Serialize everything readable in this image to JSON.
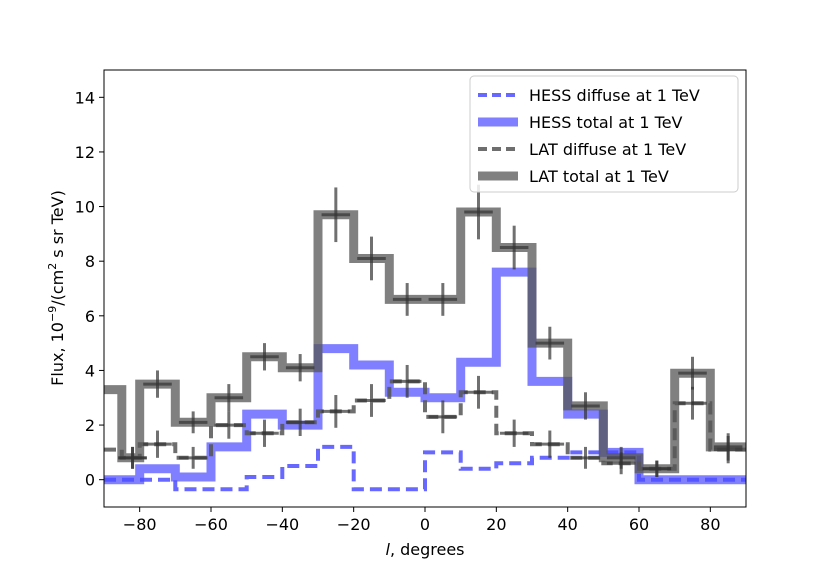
{
  "chart_data": {
    "type": "line",
    "title": "",
    "xlabel_italic": "l",
    "xlabel_rest": ", degrees",
    "ylabel": "Flux, 10",
    "ylabel_exp": "−9",
    "ylabel_mid": "/(cm",
    "ylabel_exp2": "2",
    "ylabel_end": " s sr TeV)",
    "xlim": [
      -90,
      90
    ],
    "ylim": [
      -1,
      15
    ],
    "xticks": [
      -80,
      -60,
      -40,
      -20,
      0,
      20,
      40,
      60,
      80
    ],
    "xtick_labels": [
      "−80",
      "−60",
      "−40",
      "−20",
      "0",
      "20",
      "40",
      "60",
      "80"
    ],
    "yticks": [
      0,
      2,
      4,
      6,
      8,
      10,
      12,
      14
    ],
    "ytick_labels": [
      "0",
      "2",
      "4",
      "6",
      "8",
      "10",
      "12",
      "14"
    ],
    "grid": false,
    "legend_position": "top-right",
    "bin_edges": [
      -90,
      -85,
      -80,
      -70,
      -60,
      -50,
      -40,
      -30,
      -20,
      -10,
      0,
      10,
      20,
      30,
      40,
      50,
      60,
      70,
      80,
      90
    ],
    "series": [
      {
        "name": "HESS diffuse at 1 TeV",
        "style": "dashed",
        "color": "#4d4dff",
        "values": [
          0,
          0,
          0,
          -0.35,
          -0.35,
          0.1,
          0.5,
          1.2,
          -0.35,
          -0.35,
          1.0,
          0.4,
          0.6,
          0.8,
          1.0,
          1.0,
          0.0,
          0.0,
          0.0
        ]
      },
      {
        "name": "HESS total at 1 TeV",
        "style": "solid",
        "color": "#4d4dff",
        "values": [
          0,
          0,
          0.4,
          0.1,
          1.2,
          2.4,
          2.0,
          4.8,
          4.2,
          3.2,
          3.0,
          4.3,
          7.6,
          3.6,
          2.4,
          1.0,
          0.0,
          0.0,
          0.0
        ]
      },
      {
        "name": "LAT diffuse at 1 TeV",
        "style": "dashed",
        "color": "#555555",
        "values": [
          1.1,
          0.8,
          1.3,
          0.8,
          2.0,
          1.7,
          2.1,
          2.5,
          2.9,
          3.6,
          2.3,
          3.2,
          1.7,
          1.3,
          0.8,
          0.6,
          0.4,
          2.8,
          1.1
        ]
      },
      {
        "name": "LAT total at 1 TeV",
        "style": "solid",
        "color": "#555555",
        "values": [
          3.3,
          0.8,
          3.5,
          2.1,
          3.0,
          4.5,
          4.1,
          9.7,
          8.1,
          6.6,
          6.6,
          9.8,
          8.5,
          5.0,
          2.7,
          0.8,
          0.4,
          3.9,
          1.2
        ]
      }
    ],
    "error_bars": [
      {
        "series": "LAT total at 1 TeV",
        "points": [
          {
            "x": -82,
            "y": 0.8,
            "err": 0.4
          },
          {
            "x": -75,
            "y": 3.5,
            "err": 0.5
          },
          {
            "x": -65,
            "y": 2.1,
            "err": 0.4
          },
          {
            "x": -55,
            "y": 3.0,
            "err": 0.5
          },
          {
            "x": -45,
            "y": 4.5,
            "err": 0.5
          },
          {
            "x": -35,
            "y": 4.1,
            "err": 0.5
          },
          {
            "x": -25,
            "y": 9.7,
            "err": 1.0
          },
          {
            "x": -15,
            "y": 8.1,
            "err": 0.8
          },
          {
            "x": -5,
            "y": 6.6,
            "err": 0.6
          },
          {
            "x": 5,
            "y": 6.6,
            "err": 0.6
          },
          {
            "x": 15,
            "y": 9.8,
            "err": 1.0
          },
          {
            "x": 25,
            "y": 8.5,
            "err": 0.8
          },
          {
            "x": 35,
            "y": 5.0,
            "err": 0.6
          },
          {
            "x": 45,
            "y": 2.7,
            "err": 0.5
          },
          {
            "x": 55,
            "y": 0.8,
            "err": 0.4
          },
          {
            "x": 65,
            "y": 0.4,
            "err": 0.3
          },
          {
            "x": 75,
            "y": 3.9,
            "err": 0.6
          },
          {
            "x": 85,
            "y": 1.2,
            "err": 0.5
          }
        ]
      },
      {
        "series": "LAT diffuse at 1 TeV",
        "points": [
          {
            "x": -82,
            "y": 0.8,
            "err": 0.4
          },
          {
            "x": -75,
            "y": 1.3,
            "err": 0.5
          },
          {
            "x": -65,
            "y": 0.8,
            "err": 0.4
          },
          {
            "x": -55,
            "y": 2.0,
            "err": 0.5
          },
          {
            "x": -45,
            "y": 1.7,
            "err": 0.5
          },
          {
            "x": -35,
            "y": 2.1,
            "err": 0.5
          },
          {
            "x": -25,
            "y": 2.5,
            "err": 0.6
          },
          {
            "x": -15,
            "y": 2.9,
            "err": 0.6
          },
          {
            "x": -5,
            "y": 3.6,
            "err": 0.6
          },
          {
            "x": 5,
            "y": 2.3,
            "err": 0.6
          },
          {
            "x": 15,
            "y": 3.2,
            "err": 0.6
          },
          {
            "x": 25,
            "y": 1.7,
            "err": 0.5
          },
          {
            "x": 35,
            "y": 1.3,
            "err": 0.5
          },
          {
            "x": 45,
            "y": 0.8,
            "err": 0.4
          },
          {
            "x": 55,
            "y": 0.6,
            "err": 0.4
          },
          {
            "x": 65,
            "y": 0.4,
            "err": 0.3
          },
          {
            "x": 75,
            "y": 2.8,
            "err": 0.6
          },
          {
            "x": 85,
            "y": 1.1,
            "err": 0.5
          }
        ]
      }
    ]
  }
}
